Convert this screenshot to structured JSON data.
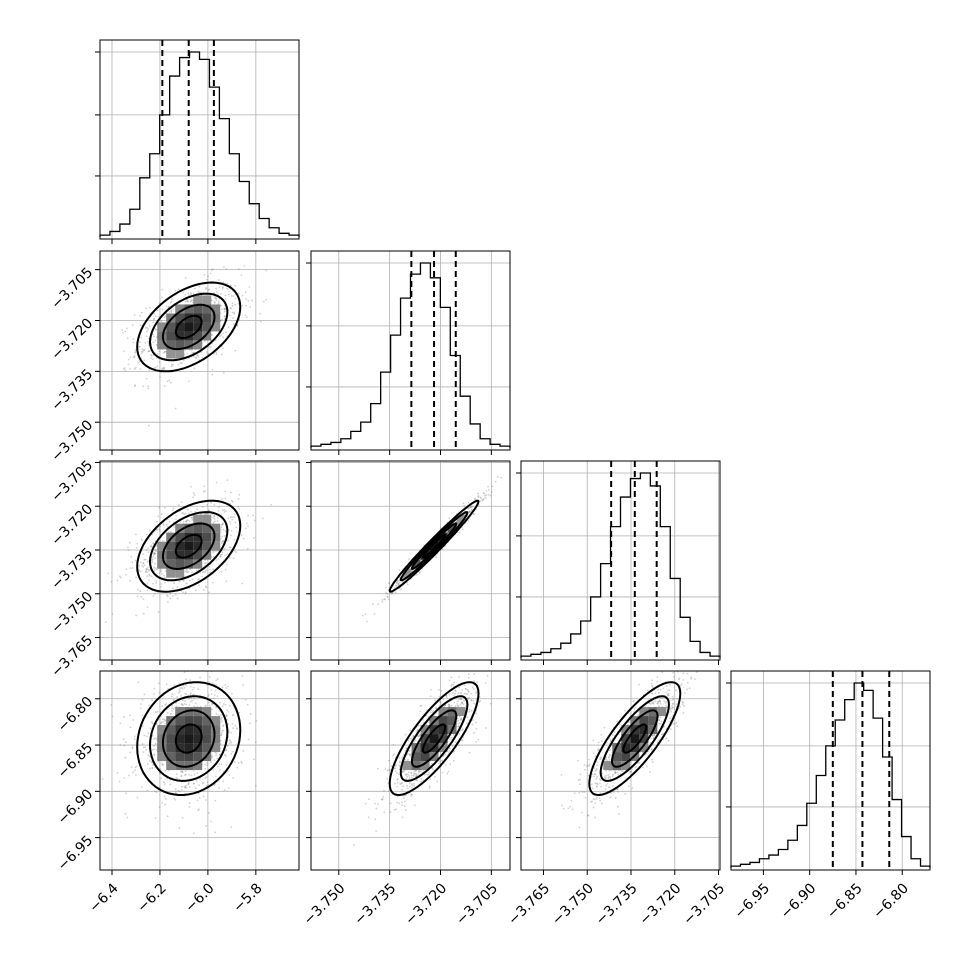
{
  "chart_data": {
    "type": "corner",
    "grid": true,
    "parameters": [
      {
        "range": [
          -6.45,
          -5.62
        ],
        "ticks": [
          -6.4,
          -6.2,
          -6.0,
          -5.8
        ],
        "tick_labels": [
          "−6.4",
          "−6.2",
          "−6.0",
          "−5.8"
        ],
        "quantiles": [
          -6.19,
          -6.08,
          -5.975
        ],
        "histogram": [
          0.01,
          0.03,
          0.07,
          0.15,
          0.32,
          0.45,
          0.66,
          0.87,
          0.97,
          1.0,
          0.96,
          0.81,
          0.64,
          0.45,
          0.3,
          0.18,
          0.1,
          0.05,
          0.02,
          0.01
        ]
      },
      {
        "range": [
          -3.7582,
          -3.6995
        ],
        "ticks": [
          -3.75,
          -3.735,
          -3.72,
          -3.705
        ],
        "tick_labels": [
          "−3.750",
          "−3.735",
          "−3.720",
          "−3.705"
        ],
        "quantiles": [
          -3.7286,
          -3.7219,
          -3.7155
        ],
        "histogram": [
          0.01,
          0.02,
          0.03,
          0.05,
          0.09,
          0.14,
          0.24,
          0.41,
          0.61,
          0.81,
          0.94,
          1.0,
          0.92,
          0.76,
          0.5,
          0.28,
          0.13,
          0.05,
          0.02,
          0.01
        ]
      },
      {
        "range": [
          -3.7727,
          -3.7045
        ],
        "ticks": [
          -3.765,
          -3.75,
          -3.735,
          -3.72,
          -3.705
        ],
        "tick_labels": [
          "−3.765",
          "−3.750",
          "−3.735",
          "−3.720",
          "−3.705"
        ],
        "quantiles": [
          -3.7418,
          -3.7337,
          -3.7262
        ],
        "histogram": [
          0.01,
          0.02,
          0.03,
          0.05,
          0.08,
          0.13,
          0.2,
          0.33,
          0.51,
          0.71,
          0.87,
          0.97,
          1.0,
          0.93,
          0.71,
          0.43,
          0.22,
          0.09,
          0.03,
          0.01
        ]
      },
      {
        "range": [
          -6.985,
          -6.77
        ],
        "ticks": [
          -6.95,
          -6.9,
          -6.85,
          -6.8
        ],
        "tick_labels": [
          "−6.95",
          "−6.90",
          "−6.85",
          "−6.80"
        ],
        "quantiles": [
          -6.875,
          -6.843,
          -6.814
        ],
        "histogram": [
          0.01,
          0.02,
          0.03,
          0.05,
          0.07,
          0.1,
          0.15,
          0.23,
          0.35,
          0.5,
          0.66,
          0.8,
          0.91,
          1.0,
          0.96,
          0.81,
          0.6,
          0.37,
          0.17,
          0.05,
          0.01
        ]
      }
    ],
    "correlations": [
      [
        1.0,
        0.45,
        0.45,
        0.15
      ],
      [
        0.45,
        1.0,
        0.98,
        0.8
      ],
      [
        0.45,
        0.98,
        1.0,
        0.8
      ],
      [
        0.15,
        0.8,
        0.8,
        1.0
      ]
    ],
    "colors": {
      "line": "#000000",
      "scatter": "#7a7a7a",
      "grid": "#b0b0b0"
    }
  }
}
